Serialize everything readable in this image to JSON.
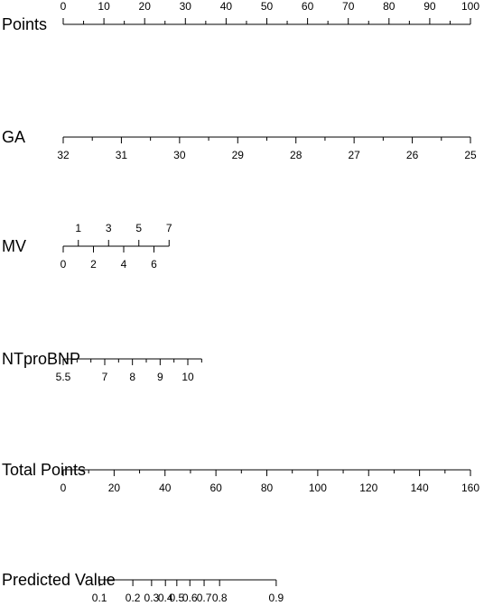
{
  "chart_data": {
    "type": "nomogram",
    "rows": [
      {
        "name": "Points",
        "range": [
          0,
          100
        ],
        "span": [
          0,
          100
        ],
        "ticks": [
          0,
          10,
          20,
          30,
          40,
          50,
          60,
          70,
          80,
          90,
          100
        ],
        "minor_ticks": [
          5,
          15,
          25,
          35,
          45,
          55,
          65,
          75,
          85,
          95
        ],
        "labels": "above"
      },
      {
        "name": "GA",
        "range": [
          32,
          25
        ],
        "span": [
          0,
          100
        ],
        "ticks": [
          32,
          31,
          30,
          29,
          28,
          27,
          26,
          25
        ],
        "minor_ticks": [
          31.5,
          30.5,
          29.5,
          28.5,
          27.5,
          26.5,
          25.5
        ],
        "labels": "below"
      },
      {
        "name": "MV",
        "range": [
          0,
          7
        ],
        "span": [
          0,
          26
        ],
        "ticks": [
          0,
          1,
          2,
          3,
          4,
          5,
          6,
          7
        ],
        "minor_ticks": [],
        "labels": "alternate"
      },
      {
        "name": "NTproBNP",
        "range": [
          5.5,
          10.5
        ],
        "span": [
          0,
          34
        ],
        "ticks": [
          5.5,
          7,
          8,
          9,
          10
        ],
        "minor_ticks": [
          6,
          6.5,
          7.5,
          8.5,
          9.5,
          10.5
        ],
        "labels": "below"
      },
      {
        "name": "Total Points",
        "range": [
          0,
          160
        ],
        "span": [
          0,
          100
        ],
        "ticks": [
          0,
          20,
          40,
          60,
          80,
          100,
          120,
          140,
          160
        ],
        "minor_ticks": [
          10,
          30,
          50,
          70,
          90,
          110,
          130,
          150
        ],
        "labels": "below"
      },
      {
        "name": "Predicted Value",
        "ticks": [
          0.1,
          0.2,
          0.3,
          0.4,
          0.5,
          0.6,
          0.7,
          0.8,
          0.9
        ],
        "tick_points": [
          8.9,
          17.1,
          21.7,
          25.1,
          27.9,
          31.1,
          34.6,
          38.4,
          52.3
        ],
        "labels": "below"
      }
    ]
  }
}
